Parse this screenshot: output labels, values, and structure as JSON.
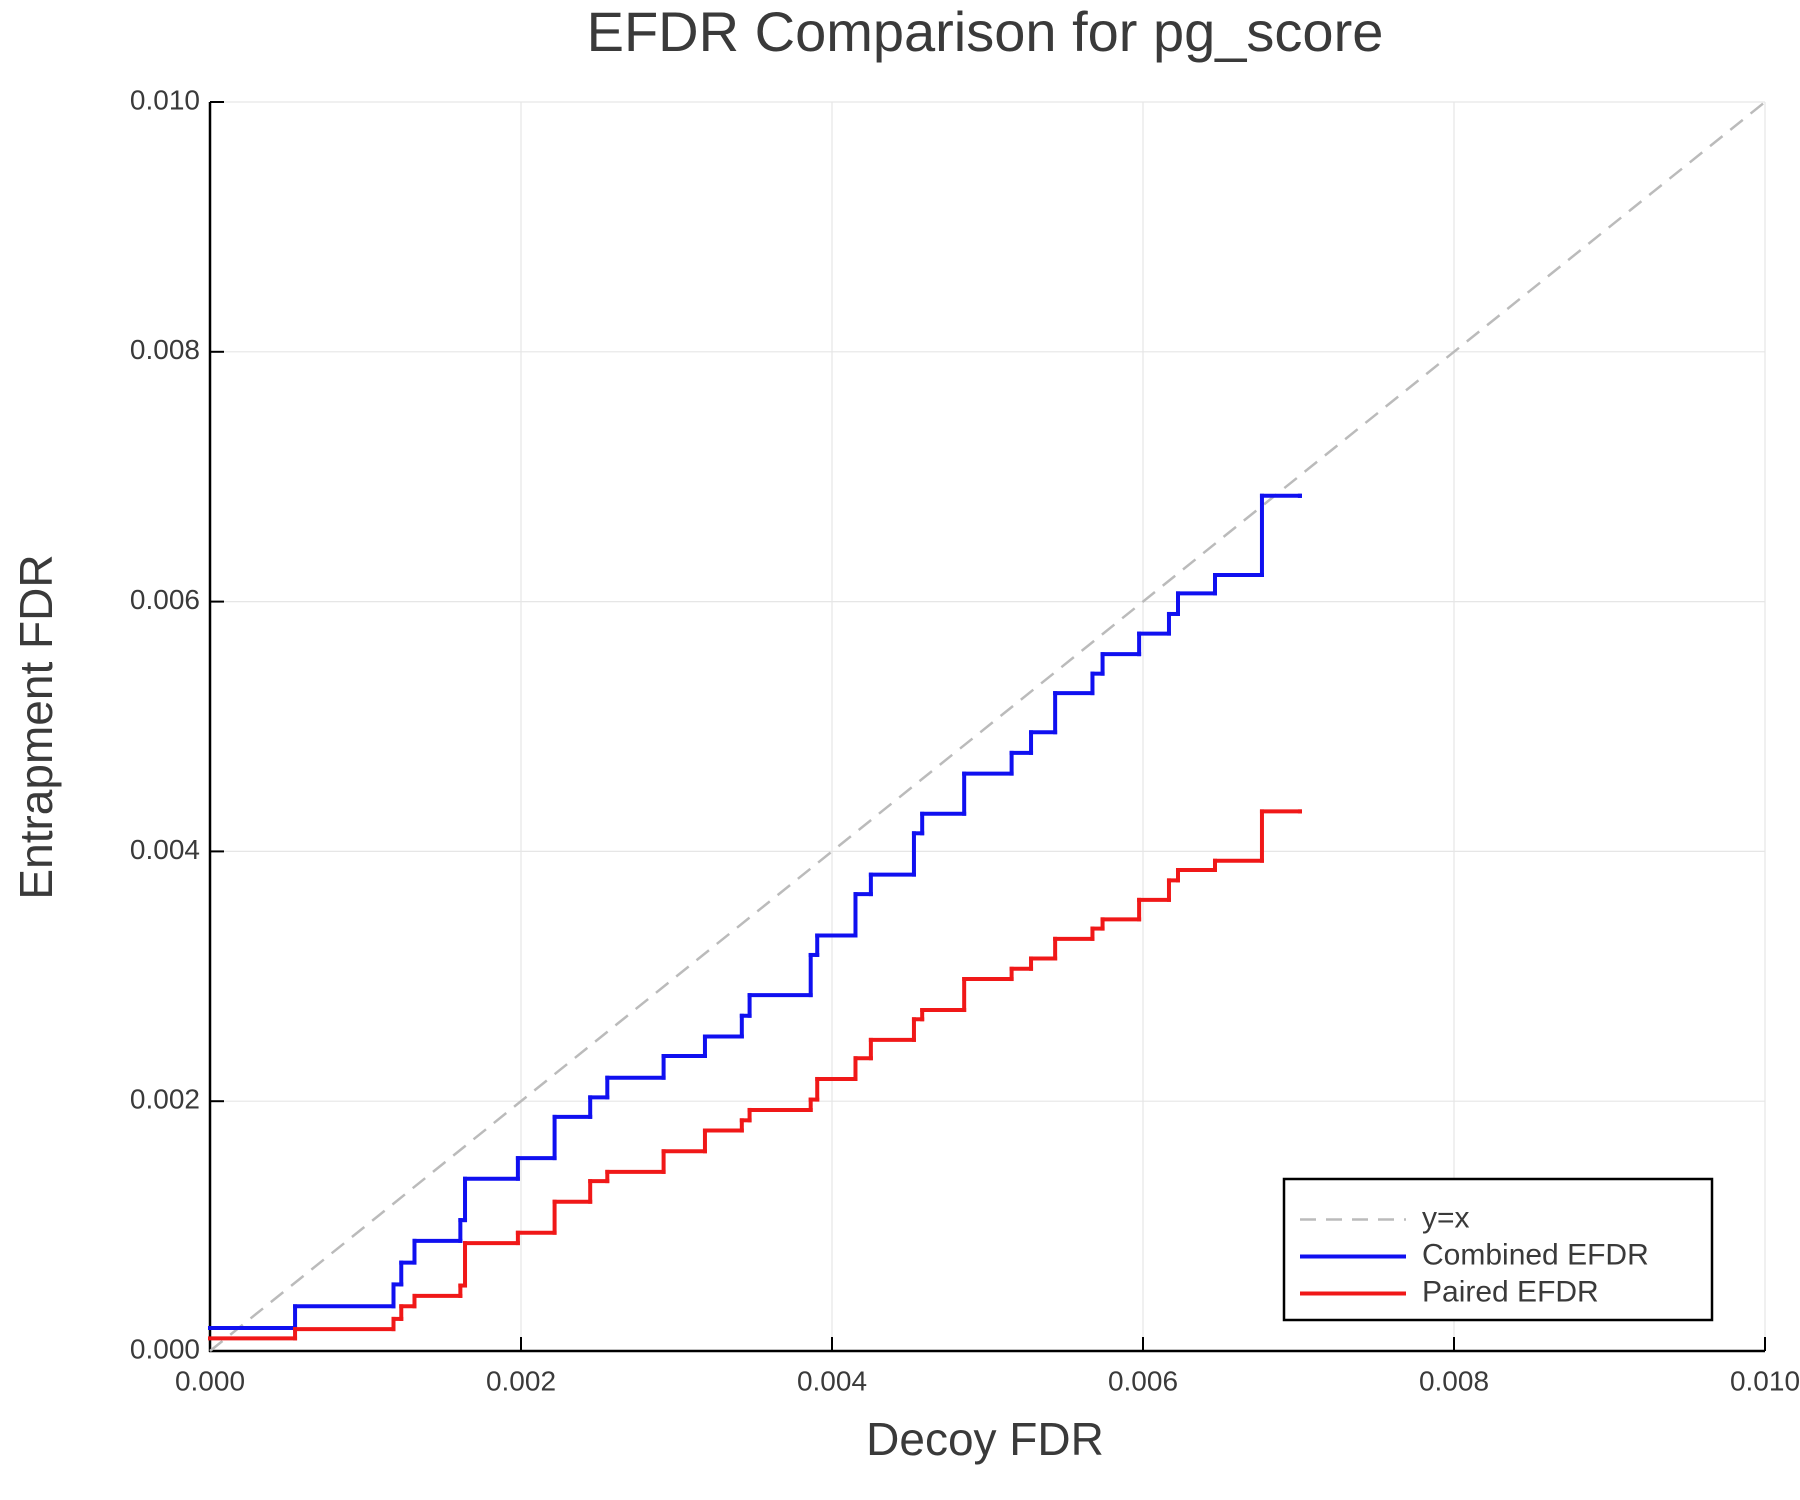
{
  "chart_data": {
    "type": "line",
    "title": "EFDR Comparison for pg_score",
    "xlabel": "Decoy FDR",
    "ylabel": "Entrapment FDR",
    "xlim": [
      0,
      0.01
    ],
    "ylim": [
      0,
      0.01
    ],
    "xticks": [
      {
        "value": 0,
        "label": "0.000"
      },
      {
        "value": 0.002,
        "label": "0.002"
      },
      {
        "value": 0.004,
        "label": "0.004"
      },
      {
        "value": 0.006,
        "label": "0.006"
      },
      {
        "value": 0.008,
        "label": "0.008"
      },
      {
        "value": 0.01,
        "label": "0.010"
      }
    ],
    "yticks": [
      {
        "value": 0,
        "label": "0.000"
      },
      {
        "value": 0.002,
        "label": "0.002"
      },
      {
        "value": 0.004,
        "label": "0.004"
      },
      {
        "value": 0.006,
        "label": "0.006"
      },
      {
        "value": 0.008,
        "label": "0.008"
      },
      {
        "value": 0.01,
        "label": "0.010"
      }
    ],
    "grid": true,
    "legend": "lower right",
    "x": [
      0,
      0.000547,
      0.00118,
      0.00123,
      0.001315,
      0.00161,
      0.00164,
      0.00198,
      0.002216,
      0.002445,
      0.002555,
      0.002917,
      0.003183,
      0.00342,
      0.00347,
      0.003863,
      0.003905,
      0.004151,
      0.00425,
      0.004527,
      0.00458,
      0.00485,
      0.005155,
      0.00528,
      0.005435,
      0.005675,
      0.00574,
      0.005975,
      0.006167,
      0.006225,
      0.006463,
      0.006765,
      0.007009
    ],
    "series": [
      {
        "name": "y=x",
        "color": "#bbbbbb",
        "style": "dashed",
        "x": [
          0,
          0.01
        ],
        "values": [
          0,
          0.01
        ]
      },
      {
        "name": "Combined EFDR",
        "color": "#1010f0",
        "style": "steps-post",
        "values": [
          0.000184,
          0.000358,
          0.000533,
          0.000708,
          0.000882,
          0.001048,
          0.001379,
          0.001544,
          0.001875,
          0.002031,
          0.002188,
          0.002362,
          0.002518,
          0.002684,
          0.002849,
          0.003171,
          0.003327,
          0.003658,
          0.003814,
          0.004145,
          0.004301,
          0.004623,
          0.004789,
          0.004954,
          0.005267,
          0.005423,
          0.005579,
          0.005744,
          0.005901,
          0.006066,
          0.006213,
          0.006847,
          0.006847
        ]
      },
      {
        "name": "Paired EFDR",
        "color": "#f01818",
        "style": "steps-post",
        "values": [
          0.000101,
          0.000175,
          0.000257,
          0.000358,
          0.000441,
          0.000524,
          0.000864,
          0.000947,
          0.001195,
          0.00136,
          0.001434,
          0.001599,
          0.001765,
          0.001847,
          0.00193,
          0.002013,
          0.002178,
          0.002344,
          0.002491,
          0.002656,
          0.00273,
          0.002978,
          0.00306,
          0.003143,
          0.0033,
          0.003382,
          0.003456,
          0.003612,
          0.003768,
          0.003851,
          0.003925,
          0.00432,
          0.00432
        ]
      }
    ]
  }
}
